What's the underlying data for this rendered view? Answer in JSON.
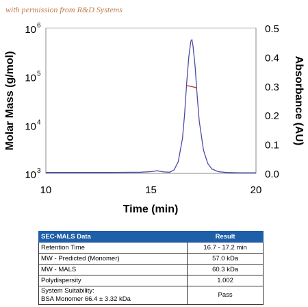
{
  "watermark": "with permission from R&D Systems",
  "chart_data": {
    "type": "line",
    "title": "",
    "xlabel": "Time (min)",
    "ylabel_left": "Molar Mass (g/mol)",
    "ylabel_right": "Absorbance (AU)",
    "xlim": [
      10,
      20
    ],
    "ylim_left_log10": [
      3,
      6
    ],
    "ylim_right": [
      0.0,
      0.5
    ],
    "x_ticks": [
      "10",
      "15",
      "20"
    ],
    "y_left_ticks": [
      {
        "base": "10",
        "exp": "3"
      },
      {
        "base": "10",
        "exp": "4"
      },
      {
        "base": "10",
        "exp": "5"
      },
      {
        "base": "10",
        "exp": "6"
      }
    ],
    "y_right_ticks": [
      "0.0",
      "0.1",
      "0.2",
      "0.3",
      "0.4",
      "0.5"
    ],
    "series": [
      {
        "axis": "right",
        "color": "#4a4aa6",
        "x": [
          10.0,
          13.0,
          14.5,
          15.0,
          15.3,
          15.6,
          15.9,
          16.1,
          16.3,
          16.5,
          16.6,
          16.7,
          16.8,
          16.9,
          16.95,
          17.0,
          17.1,
          17.2,
          17.3,
          17.5,
          17.7,
          17.9,
          18.2,
          18.6,
          19.2,
          20.0
        ],
        "y": [
          0.003,
          0.003,
          0.004,
          0.006,
          0.009,
          0.005,
          0.004,
          0.012,
          0.04,
          0.12,
          0.2,
          0.31,
          0.4,
          0.455,
          0.46,
          0.44,
          0.37,
          0.27,
          0.18,
          0.08,
          0.035,
          0.015,
          0.006,
          0.003,
          0.002,
          0.002
        ]
      },
      {
        "axis": "left",
        "color": "#c0392b",
        "x": [
          16.7,
          16.95,
          17.2
        ],
        "y": [
          65000,
          62000,
          58000
        ]
      }
    ]
  },
  "table": {
    "headers": [
      "SEC-MALS Data",
      "Result"
    ],
    "rows": [
      {
        "label": "Retention Time",
        "value": "16.7 - 17.2 min"
      },
      {
        "label": "MW - Predicted (Monomer)",
        "value": "57.0 kDa"
      },
      {
        "label": "MW - MALS",
        "value": "60.3 kDa"
      },
      {
        "label": "Polydispersity",
        "value": "1.002"
      },
      {
        "label_line1": "System Suitability:",
        "label_line2": "BSA Monomer 66.4 ± 3.32 kDa",
        "value": "Pass"
      }
    ]
  }
}
